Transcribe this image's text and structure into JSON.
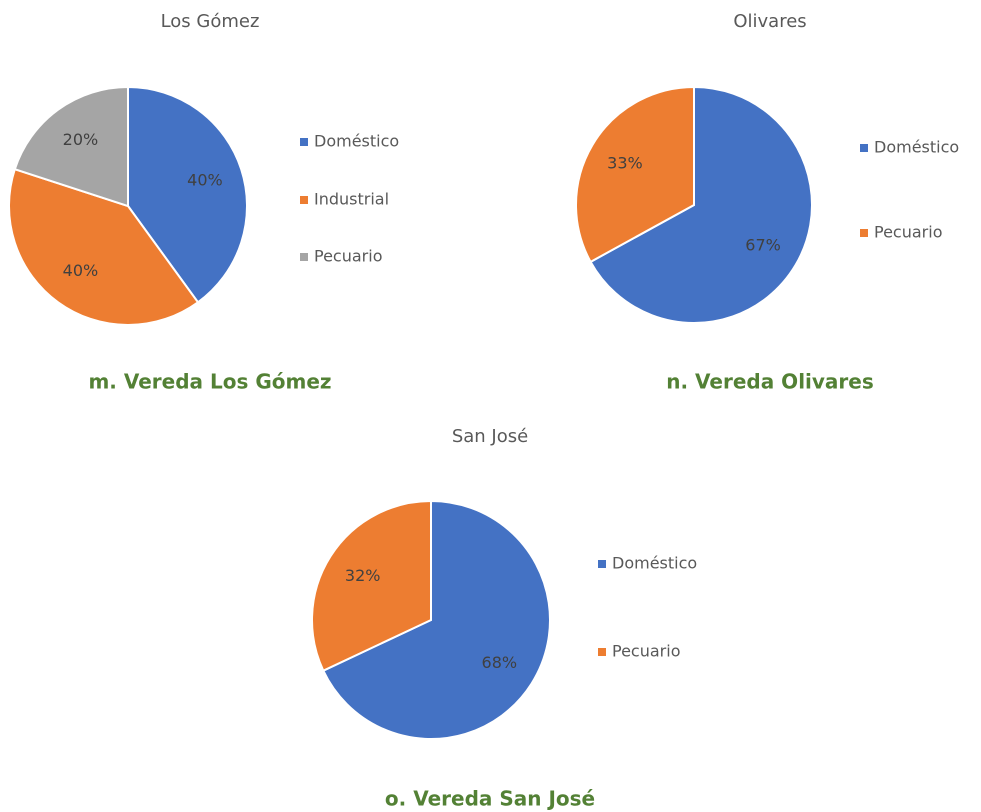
{
  "chart_data": [
    {
      "type": "pie",
      "title": "Los Gómez",
      "caption": "m. Vereda Los Gómez",
      "categories": [
        "Doméstico",
        "Industrial",
        "Pecuario"
      ],
      "values": [
        40,
        40,
        20
      ],
      "value_labels": [
        "40%",
        "40%",
        "20%"
      ],
      "colors": [
        "#4472c4",
        "#ed7d31",
        "#a5a5a5"
      ]
    },
    {
      "type": "pie",
      "title": "Olivares",
      "caption": "n. Vereda Olivares",
      "categories": [
        "Doméstico",
        "Pecuario"
      ],
      "values": [
        67,
        33
      ],
      "value_labels": [
        "67%",
        "33%"
      ],
      "colors": [
        "#4472c4",
        "#ed7d31"
      ]
    },
    {
      "type": "pie",
      "title": "San José",
      "caption": "o. Vereda San José",
      "categories": [
        "Doméstico",
        "Pecuario"
      ],
      "values": [
        68,
        32
      ],
      "value_labels": [
        "68%",
        "32%"
      ],
      "colors": [
        "#4472c4",
        "#ed7d31"
      ]
    }
  ]
}
